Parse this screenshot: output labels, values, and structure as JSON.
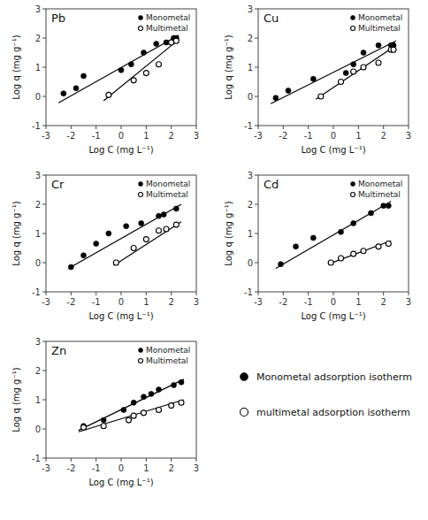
{
  "chart_data": [
    {
      "type": "scatter",
      "title": "Pb",
      "xlabel": "Log C (mg L⁻¹)",
      "ylabel": "Log q (mg g⁻¹)",
      "xlim": [
        -3,
        3
      ],
      "ylim": [
        -1,
        3
      ],
      "xticks": [
        -3,
        -2,
        -1,
        0,
        1,
        2,
        3
      ],
      "yticks": [
        -1,
        0,
        1,
        2,
        3
      ],
      "grid": false,
      "legend": "upper right",
      "series": [
        {
          "name": "Monometal",
          "type": "scatter",
          "marker": "circle",
          "color": "#000000",
          "x": [
            -2.3,
            -1.8,
            -1.5,
            0.0,
            0.4,
            0.9,
            1.4,
            1.8,
            2.1,
            2.2
          ],
          "values": [
            0.1,
            0.28,
            0.7,
            0.9,
            1.1,
            1.5,
            1.8,
            1.85,
            2.0,
            2.0
          ]
        },
        {
          "name": "Multimetal",
          "type": "scatter",
          "marker": "circle-open",
          "color": "#000000",
          "x": [
            -0.5,
            0.5,
            1.0,
            1.5,
            2.0,
            2.2
          ],
          "values": [
            0.05,
            0.55,
            0.8,
            1.1,
            1.85,
            1.9
          ]
        },
        {
          "type": "line",
          "color": "#000000",
          "x": [
            -2.5,
            2.3
          ],
          "values": [
            -0.22,
            2.1
          ]
        },
        {
          "type": "line",
          "color": "#000000",
          "x": [
            -0.7,
            2.3
          ],
          "values": [
            -0.15,
            1.95
          ]
        }
      ]
    },
    {
      "type": "scatter",
      "title": "Cu",
      "xlabel": "Log C (mg L⁻¹)",
      "ylabel": "Log q (mg g⁻¹)",
      "xlim": [
        -3,
        3
      ],
      "ylim": [
        -1,
        3
      ],
      "xticks": [
        -3,
        -2,
        -1,
        0,
        1,
        2,
        3
      ],
      "yticks": [
        -1,
        0,
        1,
        2,
        3
      ],
      "grid": false,
      "legend": "upper right",
      "series": [
        {
          "name": "Monometal",
          "type": "scatter",
          "marker": "circle",
          "color": "#000000",
          "x": [
            -2.3,
            -1.8,
            -0.8,
            0.5,
            0.8,
            1.2,
            1.8,
            2.3,
            2.4
          ],
          "values": [
            -0.05,
            0.2,
            0.6,
            0.8,
            1.1,
            1.5,
            1.75,
            1.75,
            1.75
          ]
        },
        {
          "name": "Multimetal",
          "type": "scatter",
          "marker": "circle-open",
          "color": "#000000",
          "x": [
            -0.5,
            0.3,
            0.8,
            1.2,
            1.8,
            2.3,
            2.4
          ],
          "values": [
            0.0,
            0.5,
            0.85,
            1.0,
            1.15,
            1.6,
            1.6
          ]
        },
        {
          "type": "line",
          "color": "#000000",
          "x": [
            -2.5,
            2.5
          ],
          "values": [
            -0.25,
            1.9
          ]
        },
        {
          "type": "line",
          "color": "#000000",
          "x": [
            -0.7,
            2.5
          ],
          "values": [
            -0.1,
            1.75
          ]
        }
      ]
    },
    {
      "type": "scatter",
      "title": "Cr",
      "xlabel": "Log C (mg L⁻¹)",
      "ylabel": "Log q (mg g⁻¹)",
      "xlim": [
        -3,
        3
      ],
      "ylim": [
        -1,
        3
      ],
      "xticks": [
        -3,
        -2,
        -1,
        0,
        1,
        2,
        3
      ],
      "yticks": [
        -1,
        0,
        1,
        2,
        3
      ],
      "grid": false,
      "legend": "upper right",
      "series": [
        {
          "name": "Monometal",
          "type": "scatter",
          "marker": "circle",
          "color": "#000000",
          "x": [
            -2.0,
            -1.5,
            -1.0,
            -0.5,
            0.2,
            0.8,
            1.5,
            1.7,
            2.2
          ],
          "values": [
            -0.15,
            0.25,
            0.65,
            1.0,
            1.25,
            1.35,
            1.6,
            1.65,
            1.85
          ]
        },
        {
          "name": "Multimetal",
          "type": "scatter",
          "marker": "circle-open",
          "color": "#000000",
          "x": [
            -0.2,
            0.5,
            1.0,
            1.5,
            1.8,
            2.2
          ],
          "values": [
            0.0,
            0.5,
            0.8,
            1.1,
            1.15,
            1.3
          ]
        },
        {
          "type": "line",
          "color": "#000000",
          "x": [
            -2.1,
            2.4
          ],
          "values": [
            -0.2,
            2.0
          ]
        },
        {
          "type": "line",
          "color": "#000000",
          "x": [
            -0.3,
            2.4
          ],
          "values": [
            -0.1,
            1.4
          ]
        }
      ]
    },
    {
      "type": "scatter",
      "title": "Cd",
      "xlabel": "Log C (mg L⁻¹)",
      "ylabel": "Log q (mg g⁻¹)",
      "xlim": [
        -3,
        3
      ],
      "ylim": [
        -1,
        3
      ],
      "xticks": [
        -3,
        -2,
        -1,
        0,
        1,
        2,
        3
      ],
      "yticks": [
        -1,
        0,
        1,
        2,
        3
      ],
      "grid": false,
      "legend": "upper right",
      "series": [
        {
          "name": "Monometal",
          "type": "scatter",
          "marker": "circle",
          "color": "#000000",
          "x": [
            -2.1,
            -1.5,
            -0.8,
            0.3,
            0.8,
            1.5,
            2.0,
            2.2
          ],
          "values": [
            -0.05,
            0.55,
            0.85,
            1.05,
            1.35,
            1.7,
            1.95,
            1.95
          ]
        },
        {
          "name": "Multimetal",
          "type": "scatter",
          "marker": "circle-open",
          "color": "#000000",
          "x": [
            -0.1,
            0.3,
            0.8,
            1.2,
            1.8,
            2.2
          ],
          "values": [
            0.0,
            0.15,
            0.3,
            0.4,
            0.55,
            0.65
          ]
        },
        {
          "type": "line",
          "color": "#000000",
          "x": [
            -2.3,
            2.3
          ],
          "values": [
            -0.2,
            2.1
          ]
        },
        {
          "type": "line",
          "color": "#000000",
          "x": [
            -0.2,
            2.3
          ],
          "values": [
            -0.05,
            0.75
          ]
        }
      ]
    },
    {
      "type": "scatter",
      "title": "Zn",
      "xlabel": "Log C (mg L⁻¹)",
      "ylabel": "Log q (mg g⁻¹)",
      "xlim": [
        -3,
        3
      ],
      "ylim": [
        -1,
        3
      ],
      "xticks": [
        -3,
        -2,
        -1,
        0,
        1,
        2,
        3
      ],
      "yticks": [
        -1,
        0,
        1,
        2,
        3
      ],
      "grid": false,
      "legend": "upper right",
      "annotations": [
        "Monometal adsorption isotherm",
        "multimetal adsorption isotherm"
      ],
      "series": [
        {
          "name": "Monometal",
          "type": "scatter",
          "marker": "circle",
          "color": "#000000",
          "x": [
            -1.5,
            -0.7,
            0.1,
            0.5,
            0.9,
            1.2,
            1.5,
            2.1,
            2.4
          ],
          "values": [
            0.1,
            0.3,
            0.65,
            0.9,
            1.1,
            1.2,
            1.35,
            1.5,
            1.6
          ]
        },
        {
          "name": "Multimetal",
          "type": "scatter",
          "marker": "circle-open",
          "color": "#000000",
          "x": [
            -1.5,
            -0.7,
            0.3,
            0.5,
            0.9,
            1.5,
            2.0,
            2.4
          ],
          "values": [
            0.05,
            0.1,
            0.3,
            0.45,
            0.55,
            0.65,
            0.8,
            0.9
          ]
        },
        {
          "type": "line",
          "color": "#000000",
          "x": [
            -1.7,
            2.5
          ],
          "values": [
            -0.05,
            1.7
          ]
        },
        {
          "type": "line",
          "color": "#000000",
          "x": [
            -1.7,
            2.5
          ],
          "values": [
            -0.1,
            1.0
          ]
        }
      ]
    }
  ]
}
